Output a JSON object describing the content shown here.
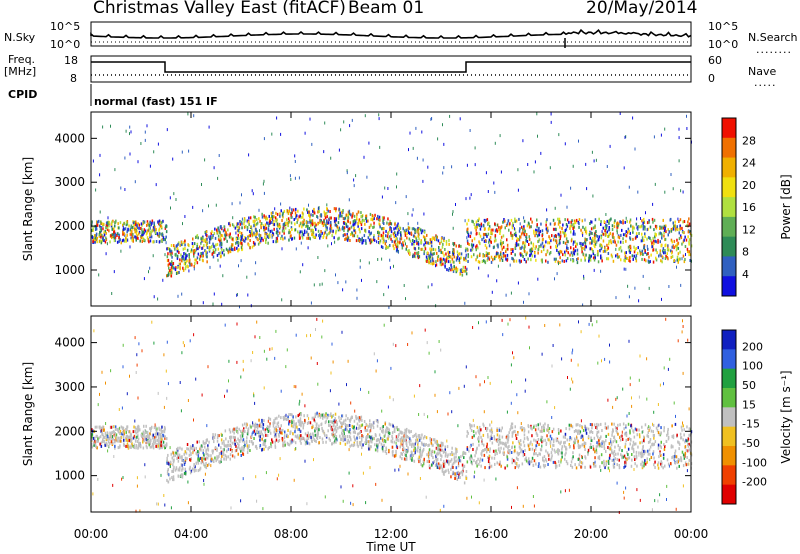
{
  "header": {
    "station": "Christmas Valley East (fitACF)",
    "beam": "Beam 01",
    "date": "20/May/2014"
  },
  "noise_panel": {
    "left_label": "N.Sky",
    "right_label": "N.Search",
    "left_ticks": [
      "10^5",
      "10^0"
    ],
    "right_ticks": [
      "10^5",
      "10^0"
    ],
    "right_key": "........"
  },
  "freq_panel": {
    "left_label_1": "Freq.",
    "left_label_2": "[MHz]",
    "left_ticks": [
      "18",
      "8"
    ],
    "right_label": "Nave",
    "right_ticks": [
      "60",
      "0"
    ],
    "right_key": "....."
  },
  "cpid": {
    "label": "CPID",
    "value": "normal (fast) 151 IF"
  },
  "chart_data": [
    {
      "type": "heatmap",
      "name": "power",
      "ylabel": "Slant Range [km]",
      "xlabel": "Time UT",
      "x_ticks": [
        "00:00",
        "04:00",
        "08:00",
        "12:00",
        "16:00",
        "20:00",
        "00:00"
      ],
      "y_ticks": [
        1000,
        2000,
        3000,
        4000
      ],
      "ylim": [
        180,
        4600
      ],
      "xlim_hours": [
        0,
        24
      ],
      "colorbar": {
        "label": "Power [dB]",
        "ticks": [
          4,
          8,
          12,
          16,
          20,
          24,
          28
        ],
        "range": [
          0,
          32
        ],
        "colors": [
          "#1010e0",
          "#3060c0",
          "#2e8b57",
          "#5fae55",
          "#b0e040",
          "#f0e010",
          "#f0b000",
          "#f07000",
          "#f01000"
        ]
      }
    },
    {
      "type": "heatmap",
      "name": "velocity",
      "ylabel": "Slant Range [km]",
      "xlabel": "Time UT",
      "x_ticks": [
        "00:00",
        "04:00",
        "08:00",
        "12:00",
        "16:00",
        "20:00",
        "00:00"
      ],
      "y_ticks": [
        1000,
        2000,
        3000,
        4000
      ],
      "ylim": [
        180,
        4600
      ],
      "xlim_hours": [
        0,
        24
      ],
      "colorbar": {
        "label": "Velocity [m s⁻¹]",
        "ticks": [
          "200",
          "100",
          "50",
          "15",
          "-15",
          "-50",
          "-100",
          "-200"
        ],
        "colors": [
          "#1020c0",
          "#3060e0",
          "#20a040",
          "#60c040",
          "#c0c0c0",
          "#f0c020",
          "#f09000",
          "#f04000",
          "#e00000"
        ]
      }
    }
  ]
}
